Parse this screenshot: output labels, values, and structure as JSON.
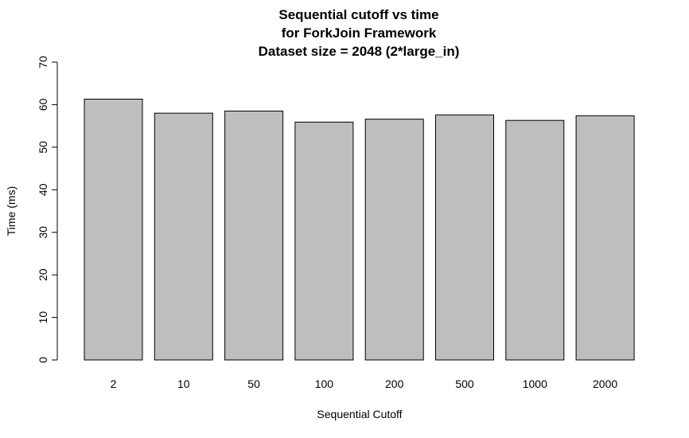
{
  "chart_data": {
    "type": "bar",
    "title_lines": [
      "Sequential cutoff vs time",
      "for ForkJoin Framework",
      "Dataset size = 2048 (2*large_in)"
    ],
    "xlabel": "Sequential Cutoff",
    "ylabel": "Time (ms)",
    "categories": [
      "2",
      "10",
      "50",
      "100",
      "200",
      "500",
      "1000",
      "2000"
    ],
    "values": [
      61.3,
      58.0,
      58.5,
      55.9,
      56.6,
      57.6,
      56.3,
      57.4
    ],
    "ylim": [
      0,
      70
    ],
    "yticks": [
      "0",
      "10",
      "20",
      "30",
      "40",
      "50",
      "60",
      "70"
    ],
    "bar_color": "#bebebe",
    "grid": false
  }
}
